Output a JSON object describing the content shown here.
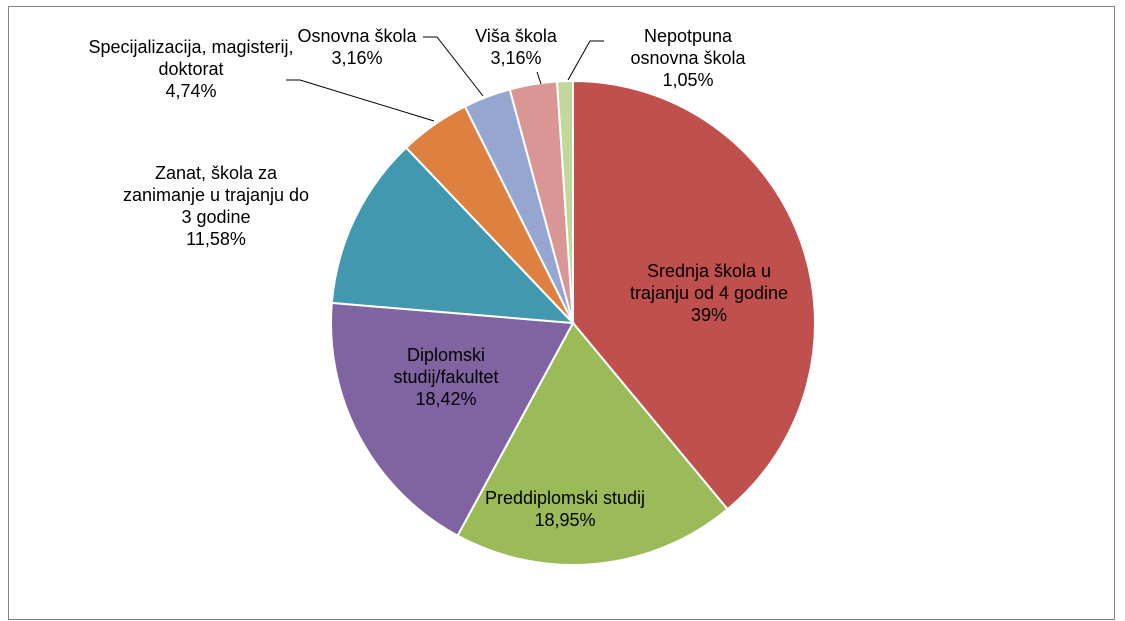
{
  "chart_data": {
    "type": "pie",
    "categories": [
      "Srednja škola u trajanju od 4 godine",
      "Preddiplomski studij",
      "Diplomski studij/fakultet",
      "Zanat, škola za zanimanje u trajanju do 3 godine",
      "Specijalizacija, magisterij, doktorat",
      "Osnovna škola",
      "Viša škola",
      "Nepotpuna osnovna škola"
    ],
    "values": [
      39,
      18.95,
      18.42,
      11.58,
      4.74,
      3.16,
      3.16,
      1.05
    ],
    "value_labels": [
      "39%",
      "18,95%",
      "18,42%",
      "11,58%",
      "4,74%",
      "3,16%",
      "3,16%",
      "1,05%"
    ],
    "colors": [
      "#c0504d",
      "#9bbb59",
      "#8064a2",
      "#4198af",
      "#dd8040",
      "#95a6d0",
      "#d99694",
      "#c3d69b"
    ]
  }
}
